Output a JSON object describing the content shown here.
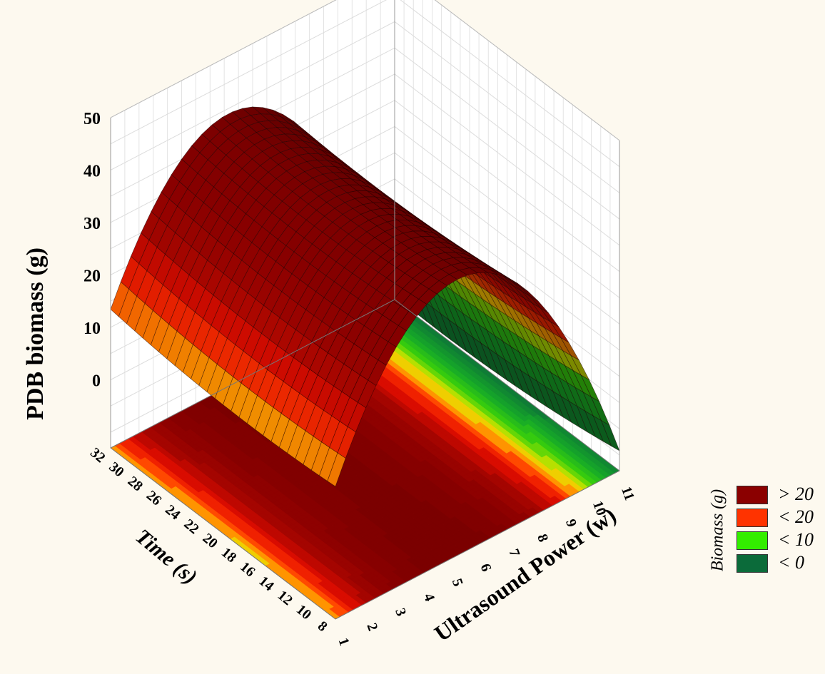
{
  "chart_data": {
    "type": "surface3d",
    "zlabel": "PDB  biomass (g)",
    "xlabel": "Ultrasound Power (w)",
    "ylabel": "Time (s)",
    "zticks": [
      "0",
      "10",
      "20",
      "30",
      "40",
      "50"
    ],
    "zlim": [
      -10,
      50
    ],
    "xticks": [
      "1",
      "2",
      "3",
      "4",
      "5",
      "6",
      "7",
      "8",
      "9",
      "10",
      "11"
    ],
    "xlim": [
      1,
      11
    ],
    "yticks": [
      "8",
      "10",
      "12",
      "14",
      "16",
      "18",
      "20",
      "22",
      "24",
      "26",
      "28",
      "30",
      "32"
    ],
    "ylim": [
      8,
      32
    ],
    "surface": {
      "peak": {
        "x": 5.2,
        "y": 21.5,
        "z": 38
      },
      "corners": [
        {
          "x": 1,
          "y": 8,
          "z": 13
        },
        {
          "x": 11,
          "y": 8,
          "z": -5
        },
        {
          "x": 1,
          "y": 32,
          "z": 6
        },
        {
          "x": 11,
          "y": 32,
          "z": -13
        }
      ]
    },
    "grid": true,
    "legend": {
      "title": "Biomass (g)",
      "position": "right",
      "items": [
        {
          "label": "> 20",
          "color": "#8b0000"
        },
        {
          "label": "< 20",
          "color": "#ff3300"
        },
        {
          "label": "< 10",
          "color": "#33ee00"
        },
        {
          "label": "< 0",
          "color": "#0b6b3a"
        }
      ]
    }
  }
}
